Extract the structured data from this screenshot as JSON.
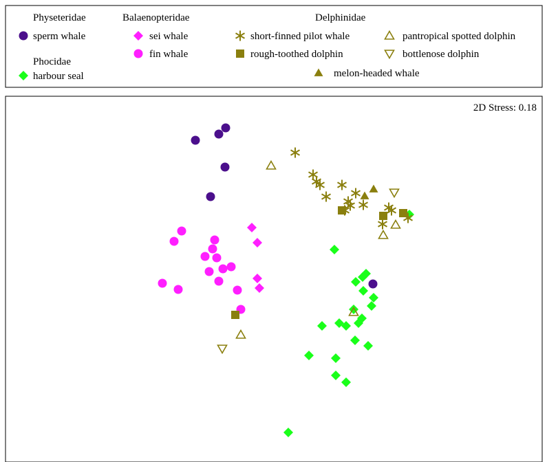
{
  "colors": {
    "physeteridae": "#4b0f8c",
    "balaenopteridae": "#ff1fff",
    "phocidae": "#1aff1a",
    "delphinidae": "#8a7f0e"
  },
  "legend": {
    "groups": [
      {
        "name": "Physeteridae",
        "entries": [
          {
            "label": "sperm whale",
            "marker": "circle",
            "color_key": "physeteridae"
          }
        ]
      },
      {
        "name": "Phocidae",
        "entries": [
          {
            "label": "harbour seal",
            "marker": "diamond",
            "color_key": "phocidae"
          }
        ]
      },
      {
        "name": "Balaenopteridae",
        "entries": [
          {
            "label": "sei whale",
            "marker": "diamond",
            "color_key": "balaenopteridae"
          },
          {
            "label": "fin whale",
            "marker": "circle",
            "color_key": "balaenopteridae"
          }
        ]
      },
      {
        "name": "Delphinidae",
        "entries": [
          {
            "label": "short-finned pilot whale",
            "marker": "asterisk",
            "color_key": "delphinidae"
          },
          {
            "label": "rough-toothed dolphin",
            "marker": "square",
            "color_key": "delphinidae"
          },
          {
            "label": "melon-headed whale",
            "marker": "triangle-up-filled",
            "color_key": "delphinidae"
          },
          {
            "label": "pantropical spotted dolphin",
            "marker": "triangle-up-open",
            "color_key": "delphinidae"
          },
          {
            "label": "bottlenose dolphin",
            "marker": "triangle-down-open",
            "color_key": "delphinidae"
          }
        ]
      }
    ]
  },
  "chart_data": {
    "type": "scatter",
    "title": "",
    "xlabel": "",
    "ylabel": "",
    "annotation": "2D Stress: 0.18",
    "grid": false,
    "axes_shown": false,
    "xlim": [
      0,
      795
    ],
    "ylim": [
      0,
      532
    ],
    "legend_position": "top, separate box",
    "series": [
      {
        "name": "sperm whale",
        "marker": "circle",
        "color_key": "physeteridae",
        "points": [
          [
            320,
            46
          ],
          [
            310,
            55
          ],
          [
            276,
            64
          ],
          [
            319,
            103
          ],
          [
            298,
            146
          ],
          [
            534,
            273
          ]
        ]
      },
      {
        "name": "fin whale",
        "marker": "circle",
        "color_key": "balaenopteridae",
        "points": [
          [
            256,
            196
          ],
          [
            245,
            211
          ],
          [
            304,
            209
          ],
          [
            301,
            222
          ],
          [
            290,
            233
          ],
          [
            307,
            235
          ],
          [
            296,
            255
          ],
          [
            316,
            251
          ],
          [
            328,
            248
          ],
          [
            228,
            272
          ],
          [
            251,
            281
          ],
          [
            310,
            269
          ],
          [
            337,
            282
          ],
          [
            342,
            310
          ]
        ]
      },
      {
        "name": "sei whale",
        "marker": "diamond",
        "color_key": "balaenopteridae",
        "points": [
          [
            358,
            191
          ],
          [
            366,
            213
          ],
          [
            366,
            265
          ],
          [
            369,
            279
          ]
        ]
      },
      {
        "name": "harbour seal",
        "marker": "diamond",
        "color_key": "phocidae",
        "points": [
          [
            478,
            223
          ],
          [
            524,
            258
          ],
          [
            519,
            263
          ],
          [
            509,
            270
          ],
          [
            520,
            283
          ],
          [
            535,
            293
          ],
          [
            506,
            310
          ],
          [
            532,
            305
          ],
          [
            518,
            323
          ],
          [
            513,
            330
          ],
          [
            485,
            330
          ],
          [
            495,
            334
          ],
          [
            460,
            334
          ],
          [
            508,
            355
          ],
          [
            527,
            363
          ],
          [
            441,
            377
          ],
          [
            480,
            381
          ],
          [
            480,
            406
          ],
          [
            495,
            416
          ],
          [
            411,
            489
          ],
          [
            587,
            172
          ]
        ]
      },
      {
        "name": "short-finned pilot whale",
        "marker": "asterisk",
        "color_key": "delphinidae",
        "points": [
          [
            421,
            82
          ],
          [
            447,
            114
          ],
          [
            452,
            124
          ],
          [
            457,
            129
          ],
          [
            489,
            129
          ],
          [
            466,
            146
          ],
          [
            509,
            141
          ],
          [
            498,
            153
          ],
          [
            501,
            159
          ],
          [
            520,
            158
          ],
          [
            493,
            166
          ],
          [
            557,
            162
          ],
          [
            561,
            166
          ],
          [
            585,
            177
          ],
          [
            548,
            186
          ]
        ]
      },
      {
        "name": "rough-toothed dolphin",
        "marker": "square",
        "color_key": "delphinidae",
        "points": [
          [
            489,
            166
          ],
          [
            549,
            174
          ],
          [
            578,
            170
          ],
          [
            334,
            318
          ]
        ]
      },
      {
        "name": "melon-headed whale",
        "marker": "triangle-up-filled",
        "color_key": "delphinidae",
        "points": [
          [
            535,
            135
          ],
          [
            522,
            145
          ]
        ]
      },
      {
        "name": "pantropical spotted dolphin",
        "marker": "triangle-up-open",
        "color_key": "delphinidae",
        "points": [
          [
            386,
            101
          ],
          [
            567,
            187
          ],
          [
            549,
            202
          ],
          [
            506,
            314
          ],
          [
            342,
            347
          ]
        ]
      },
      {
        "name": "bottlenose dolphin",
        "marker": "triangle-down-open",
        "color_key": "delphinidae",
        "points": [
          [
            565,
            140
          ],
          [
            315,
            367
          ]
        ]
      }
    ]
  }
}
